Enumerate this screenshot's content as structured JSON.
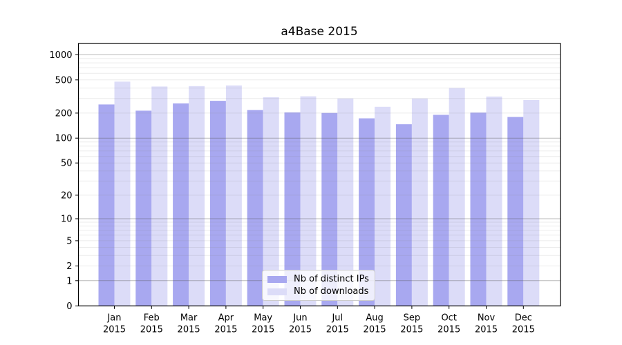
{
  "chart_data": {
    "type": "bar",
    "title": "a4Base 2015",
    "categories": [
      "Jan",
      "Feb",
      "Mar",
      "Apr",
      "May",
      "Jun",
      "Jul",
      "Aug",
      "Sep",
      "Oct",
      "Nov",
      "Dec"
    ],
    "category_year": "2015",
    "series": [
      {
        "name": "Nb of distinct IPs",
        "color": "#a8a8f0",
        "values": [
          254,
          214,
          262,
          281,
          218,
          204,
          201,
          173,
          147,
          191,
          203,
          180
        ]
      },
      {
        "name": "Nb of downloads",
        "color": "#dcdcf8",
        "values": [
          477,
          417,
          422,
          430,
          310,
          318,
          300,
          238,
          300,
          400,
          316,
          287
        ]
      }
    ],
    "xlabel": "",
    "ylabel": "",
    "yscale": "log1p",
    "yticks": [
      0,
      1,
      2,
      5,
      10,
      20,
      50,
      100,
      200,
      500,
      1000
    ],
    "ylim": [
      0,
      1365
    ],
    "grid": "horizontal major and minor log gridlines",
    "legend_position": "lower center inside plot",
    "colors": {
      "minor_grid": "rgba(128,128,128,0.16)",
      "major_grid": "rgba(85,85,85,0.42)",
      "spine": "#000000",
      "text": "#000000",
      "background": "#ffffff"
    }
  }
}
